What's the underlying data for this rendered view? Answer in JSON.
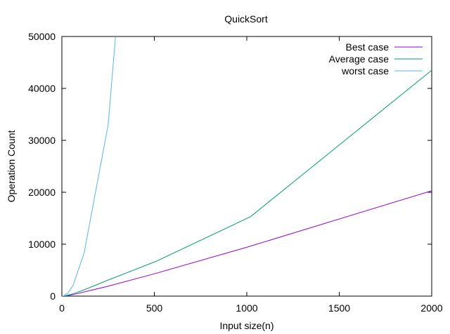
{
  "chart_data": {
    "type": "line",
    "title": "QuickSort",
    "xlabel": "Input size(n)",
    "ylabel": "Operation Count",
    "xlim": [
      0,
      2000
    ],
    "ylim": [
      0,
      50000
    ],
    "xticks": [
      0,
      500,
      1000,
      1500,
      2000
    ],
    "yticks": [
      0,
      10000,
      20000,
      30000,
      40000,
      50000
    ],
    "grid": false,
    "legend_position": "top-right",
    "series": [
      {
        "name": "Best case",
        "color": "#9400d3",
        "points": [
          [
            0,
            0
          ],
          [
            10,
            20
          ],
          [
            30,
            100
          ],
          [
            60,
            300
          ],
          [
            120,
            800
          ],
          [
            250,
            1900
          ],
          [
            500,
            4300
          ],
          [
            1000,
            9400
          ],
          [
            2000,
            20300
          ]
        ]
      },
      {
        "name": "Average case",
        "color": "#009e73",
        "points": [
          [
            0,
            0
          ],
          [
            10,
            30
          ],
          [
            30,
            150
          ],
          [
            60,
            450
          ],
          [
            120,
            1200
          ],
          [
            250,
            3100
          ],
          [
            510,
            6700
          ],
          [
            1020,
            15300
          ],
          [
            2000,
            43500
          ]
        ]
      },
      {
        "name": "worst case",
        "color": "#56b4e9",
        "points": [
          [
            0,
            0
          ],
          [
            10,
            60
          ],
          [
            30,
            500
          ],
          [
            60,
            2000
          ],
          [
            120,
            8300
          ],
          [
            250,
            33000
          ],
          [
            290,
            50000
          ]
        ]
      }
    ]
  }
}
